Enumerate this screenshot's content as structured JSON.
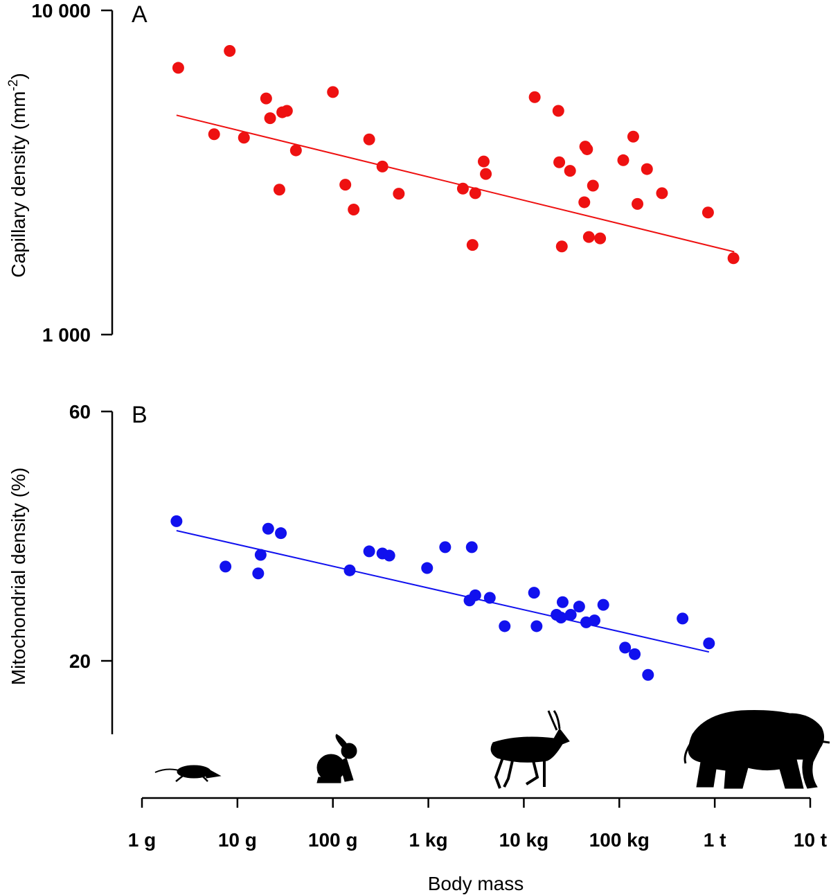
{
  "chart_data": [
    {
      "panel": "A",
      "type": "scatter",
      "ylabel": "Capillary density (mm",
      "ylabel_sup": "-2",
      "ylabel_close": ")",
      "y_scale": "log",
      "ylim": [
        1000,
        10000
      ],
      "y_ticks": [
        {
          "value": 1000,
          "label": "1 000"
        },
        {
          "value": 10000,
          "label": "10 000"
        }
      ],
      "xlabel": "",
      "x_scale": "log",
      "x_unit": "g",
      "marker_color": "#ee1111",
      "line_color": "#ee1111",
      "trend_line": {
        "x": [
          2.3,
          1600000
        ],
        "y": [
          4750,
          1800
        ]
      },
      "points": [
        {
          "x": 2.4,
          "y": 6650
        },
        {
          "x": 5.7,
          "y": 4150
        },
        {
          "x": 8.3,
          "y": 7500
        },
        {
          "x": 11.7,
          "y": 4050
        },
        {
          "x": 20,
          "y": 5350
        },
        {
          "x": 22,
          "y": 4650
        },
        {
          "x": 27.5,
          "y": 2800
        },
        {
          "x": 29.5,
          "y": 4850
        },
        {
          "x": 33,
          "y": 4900
        },
        {
          "x": 41,
          "y": 3700
        },
        {
          "x": 100,
          "y": 5600
        },
        {
          "x": 135,
          "y": 2900
        },
        {
          "x": 165,
          "y": 2430
        },
        {
          "x": 240,
          "y": 4000
        },
        {
          "x": 330,
          "y": 3300
        },
        {
          "x": 490,
          "y": 2720
        },
        {
          "x": 2300,
          "y": 2820
        },
        {
          "x": 2900,
          "y": 1890
        },
        {
          "x": 3100,
          "y": 2730
        },
        {
          "x": 3800,
          "y": 3420
        },
        {
          "x": 4000,
          "y": 3130
        },
        {
          "x": 13000,
          "y": 5400
        },
        {
          "x": 23000,
          "y": 4900
        },
        {
          "x": 23500,
          "y": 3400
        },
        {
          "x": 25000,
          "y": 1870
        },
        {
          "x": 30500,
          "y": 3200
        },
        {
          "x": 43000,
          "y": 2560
        },
        {
          "x": 44000,
          "y": 3800
        },
        {
          "x": 46000,
          "y": 3730
        },
        {
          "x": 48000,
          "y": 2000
        },
        {
          "x": 53000,
          "y": 2880
        },
        {
          "x": 63000,
          "y": 1980
        },
        {
          "x": 110000,
          "y": 3450
        },
        {
          "x": 140000,
          "y": 4080
        },
        {
          "x": 155000,
          "y": 2530
        },
        {
          "x": 195000,
          "y": 3240
        },
        {
          "x": 280000,
          "y": 2730
        },
        {
          "x": 850000,
          "y": 2380
        },
        {
          "x": 1570000,
          "y": 1720
        }
      ]
    },
    {
      "panel": "B",
      "type": "scatter",
      "ylabel": "Mitochondrial density (%)",
      "y_scale": "log",
      "ylim": [
        15,
        60
      ],
      "y_ticks": [
        {
          "value": 20,
          "label": "20"
        },
        {
          "value": 60,
          "label": "60"
        }
      ],
      "xlabel": "Body mass",
      "x_scale": "log",
      "x_unit": "g",
      "x_ticks": [
        {
          "value": 1,
          "label": "1 g"
        },
        {
          "value": 10,
          "label": "10 g"
        },
        {
          "value": 100,
          "label": "100 g"
        },
        {
          "value": 1000,
          "label": "1 kg"
        },
        {
          "value": 10000,
          "label": "10 kg"
        },
        {
          "value": 100000,
          "label": "100 kg"
        },
        {
          "value": 1000000,
          "label": "1 t"
        },
        {
          "value": 10000000,
          "label": "10 t"
        }
      ],
      "marker_color": "#1111ee",
      "line_color": "#1111ee",
      "trend_line": {
        "x": [
          2.3,
          870000
        ],
        "y": [
          35.5,
          20.8
        ]
      },
      "points": [
        {
          "x": 2.3,
          "y": 37.0
        },
        {
          "x": 7.5,
          "y": 30.3
        },
        {
          "x": 16.5,
          "y": 29.4
        },
        {
          "x": 17.5,
          "y": 31.9
        },
        {
          "x": 21,
          "y": 35.8
        },
        {
          "x": 28.5,
          "y": 35.1
        },
        {
          "x": 150,
          "y": 29.8
        },
        {
          "x": 240,
          "y": 32.4
        },
        {
          "x": 330,
          "y": 32.1
        },
        {
          "x": 390,
          "y": 31.8
        },
        {
          "x": 970,
          "y": 30.1
        },
        {
          "x": 1500,
          "y": 33.0
        },
        {
          "x": 2700,
          "y": 26.1
        },
        {
          "x": 2850,
          "y": 33.0
        },
        {
          "x": 3100,
          "y": 26.7
        },
        {
          "x": 4400,
          "y": 26.4
        },
        {
          "x": 6300,
          "y": 23.3
        },
        {
          "x": 12800,
          "y": 27.0
        },
        {
          "x": 13600,
          "y": 23.3
        },
        {
          "x": 22000,
          "y": 24.5
        },
        {
          "x": 24500,
          "y": 24.2
        },
        {
          "x": 25500,
          "y": 25.9
        },
        {
          "x": 31000,
          "y": 24.5
        },
        {
          "x": 38000,
          "y": 25.4
        },
        {
          "x": 45000,
          "y": 23.7
        },
        {
          "x": 55000,
          "y": 23.9
        },
        {
          "x": 68000,
          "y": 25.6
        },
        {
          "x": 115000,
          "y": 21.2
        },
        {
          "x": 145000,
          "y": 20.6
        },
        {
          "x": 200000,
          "y": 18.8
        },
        {
          "x": 460000,
          "y": 24.1
        },
        {
          "x": 870000,
          "y": 21.6
        }
      ]
    }
  ],
  "silhouettes": [
    "shrew-silhouette",
    "hare-silhouette",
    "gazelle-silhouette",
    "elephant-silhouette"
  ]
}
